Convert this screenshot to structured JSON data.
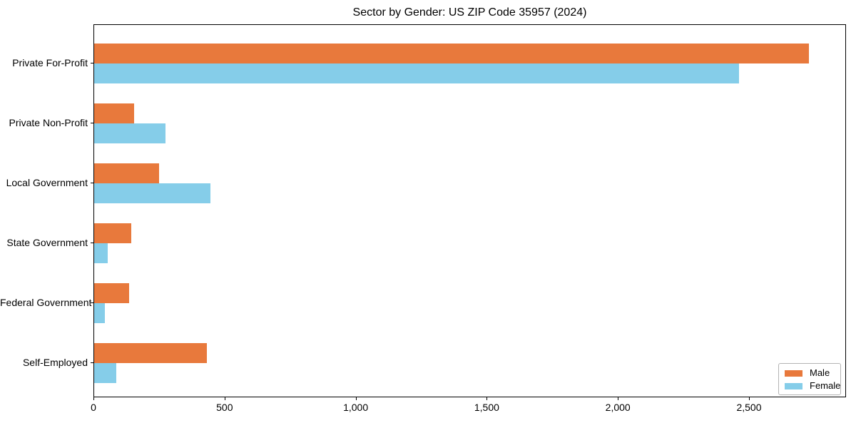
{
  "chart_data": {
    "type": "bar",
    "orientation": "horizontal",
    "title": "Sector by Gender: US ZIP Code 35957 (2024)",
    "categories": [
      "Private For-Profit",
      "Private Non-Profit",
      "Local Government",
      "State Government",
      "Federal Government",
      "Self-Employed"
    ],
    "series": [
      {
        "name": "Male",
        "color": "#E8793C",
        "values": [
          2730,
          152,
          248,
          142,
          133,
          431
        ]
      },
      {
        "name": "Female",
        "color": "#85CDE9",
        "values": [
          2465,
          272,
          444,
          52,
          41,
          84
        ]
      }
    ],
    "xlabel": "",
    "ylabel": "",
    "xlim": [
      0,
      2870
    ],
    "xticks": [
      0,
      500,
      1000,
      1500,
      2000,
      2500
    ],
    "xtick_labels": [
      "0",
      "500",
      "1,000",
      "1,500",
      "2,000",
      "2,500"
    ],
    "grid": false,
    "legend_position": "lower right",
    "plot_background": "#ffffff",
    "spine_color": "#000000"
  }
}
